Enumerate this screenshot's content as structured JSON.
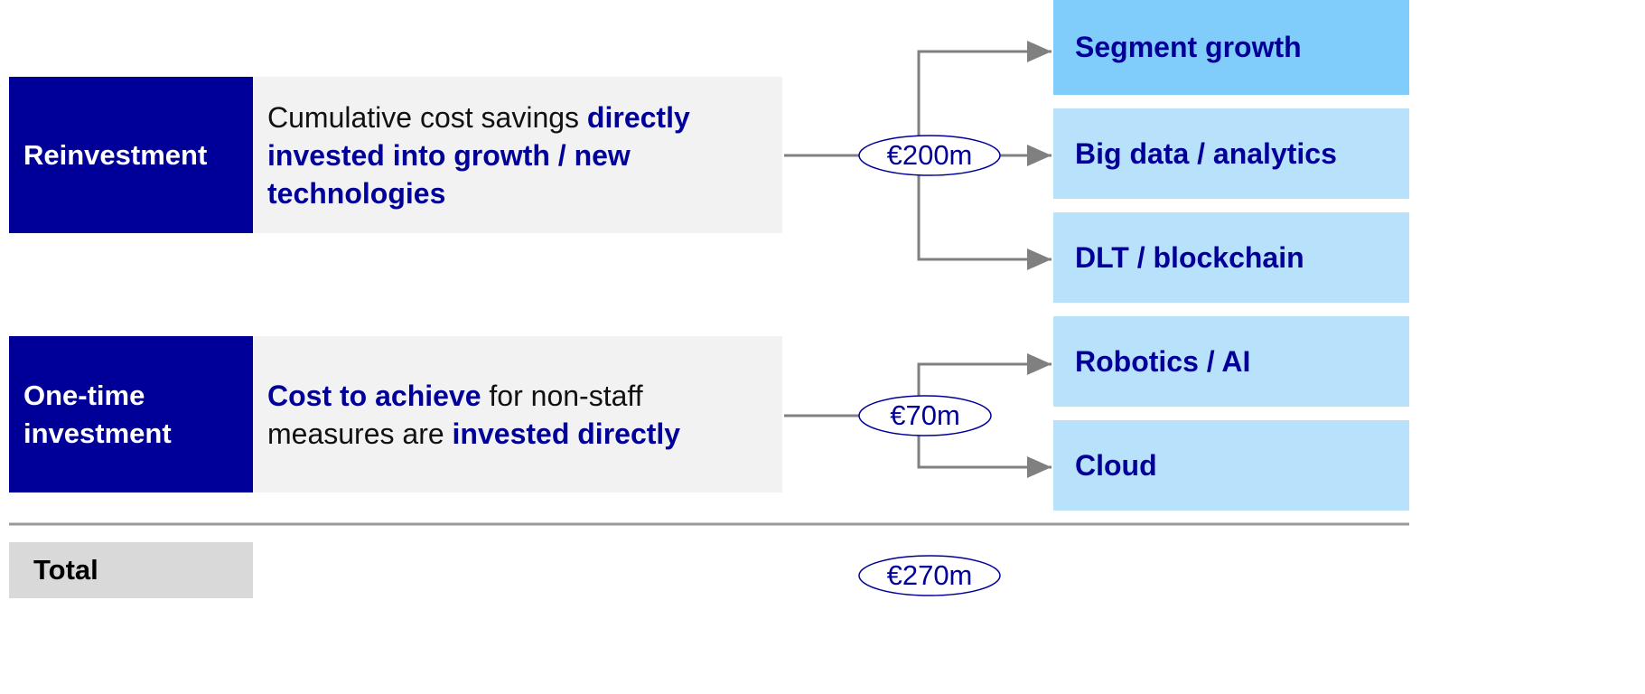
{
  "rows": [
    {
      "label": "Reinvestment",
      "description": [
        {
          "text": "Cumulative cost savings ",
          "bold": false
        },
        {
          "text": "directly invested into growth / new technologies",
          "bold": true
        }
      ],
      "amount": "€200m"
    },
    {
      "label": "One-time investment",
      "description": [
        {
          "text": "Cost to achieve",
          "bold": true
        },
        {
          "text": " for non-staff measures are ",
          "bold": false
        },
        {
          "text": "invested directly",
          "bold": true
        }
      ],
      "amount": "€70m"
    }
  ],
  "targets": [
    "Segment growth",
    "Big data / analytics",
    "DLT / blockchain",
    "Robotics / AI",
    "Cloud"
  ],
  "total": {
    "label": "Total",
    "amount": "€270m"
  }
}
